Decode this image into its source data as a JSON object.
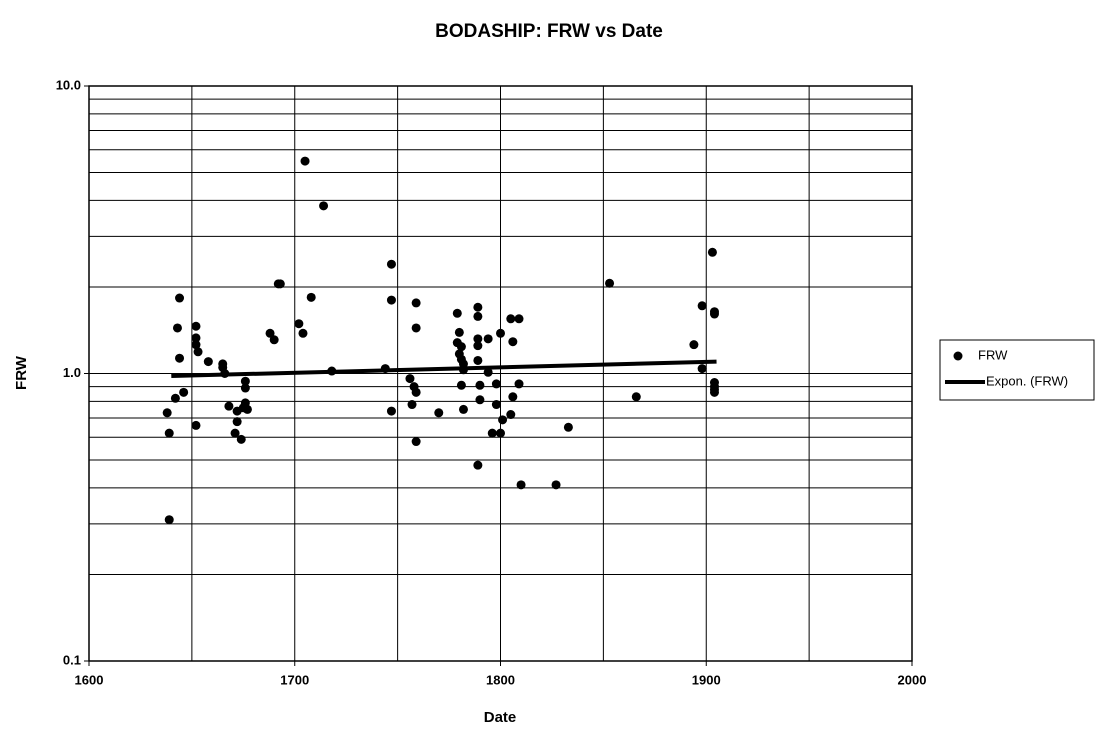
{
  "chart_data": {
    "type": "scatter",
    "title": "BODASHIP: FRW vs Date",
    "x_label": "Date",
    "y_label": "FRW",
    "xlim": [
      1600,
      2000
    ],
    "xticks": [
      1600,
      1700,
      1800,
      1900,
      2000
    ],
    "x_minor_grid": [
      1650,
      1750,
      1850,
      1950
    ],
    "ylim": [
      0.1,
      10
    ],
    "y_log": true,
    "yticks": [
      0.1,
      {
        "value": 1,
        "label": "1.0"
      },
      {
        "value": 10,
        "label": "10.0"
      }
    ],
    "y_minor_grid": [
      0.2,
      0.3,
      0.4,
      0.5,
      0.6,
      0.7,
      0.8,
      0.9,
      2,
      3,
      4,
      5,
      6,
      7,
      8,
      9
    ],
    "grid": true,
    "legend": "right",
    "series": [
      {
        "name": "FRW",
        "mode": "markers",
        "color": "#000000",
        "x": [
          1638,
          1639,
          1639,
          1642,
          1643,
          1644,
          1644,
          1646,
          1652,
          1652,
          1652,
          1653,
          1652,
          1658,
          1665,
          1665,
          1666,
          1668,
          1671,
          1672,
          1672,
          1674,
          1675,
          1676,
          1676,
          1676,
          1677,
          1688,
          1690,
          1692,
          1693,
          1702,
          1704,
          1705,
          1708,
          1714,
          1718,
          1744,
          1747,
          1747,
          1747,
          1756,
          1757,
          1758,
          1759,
          1759,
          1759,
          1759,
          1770,
          1779,
          1779,
          1780,
          1780,
          1781,
          1781,
          1781,
          1782,
          1782,
          1782,
          1789,
          1789,
          1789,
          1789,
          1789,
          1789,
          1790,
          1790,
          1794,
          1794,
          1796,
          1798,
          1798,
          1800,
          1800,
          1801,
          1805,
          1805,
          1806,
          1806,
          1809,
          1809,
          1810,
          1827,
          1833,
          1853,
          1866,
          1894,
          1898,
          1898,
          1903,
          1904,
          1904,
          1904,
          1904,
          1904,
          1904
        ],
        "values": [
          0.73,
          0.62,
          0.31,
          0.82,
          1.44,
          1.83,
          1.13,
          0.86,
          1.46,
          1.33,
          1.26,
          1.19,
          0.66,
          1.1,
          1.05,
          1.08,
          1.0,
          0.77,
          0.62,
          0.68,
          0.74,
          0.59,
          0.76,
          0.94,
          0.89,
          0.79,
          0.75,
          1.38,
          1.31,
          2.05,
          2.05,
          1.49,
          1.38,
          5.48,
          1.84,
          3.83,
          1.02,
          1.04,
          2.4,
          1.8,
          0.74,
          0.96,
          0.78,
          0.9,
          0.86,
          1.76,
          1.44,
          0.58,
          0.73,
          1.62,
          1.28,
          1.17,
          1.39,
          1.12,
          0.91,
          1.24,
          1.08,
          0.75,
          1.03,
          1.7,
          1.58,
          1.32,
          1.25,
          1.11,
          0.48,
          0.91,
          0.81,
          1.32,
          1.01,
          0.62,
          0.92,
          0.78,
          1.38,
          0.62,
          0.69,
          0.72,
          1.55,
          1.29,
          0.83,
          1.55,
          0.92,
          0.41,
          0.41,
          0.65,
          2.06,
          0.83,
          1.26,
          1.72,
          1.04,
          2.64,
          1.64,
          0.93,
          1.61,
          0.88,
          0.9,
          0.86
        ]
      },
      {
        "name": "Expon. (FRW)",
        "mode": "line",
        "color": "#000000",
        "x": [
          1640,
          1905
        ],
        "values": [
          0.98,
          1.1
        ]
      }
    ]
  }
}
